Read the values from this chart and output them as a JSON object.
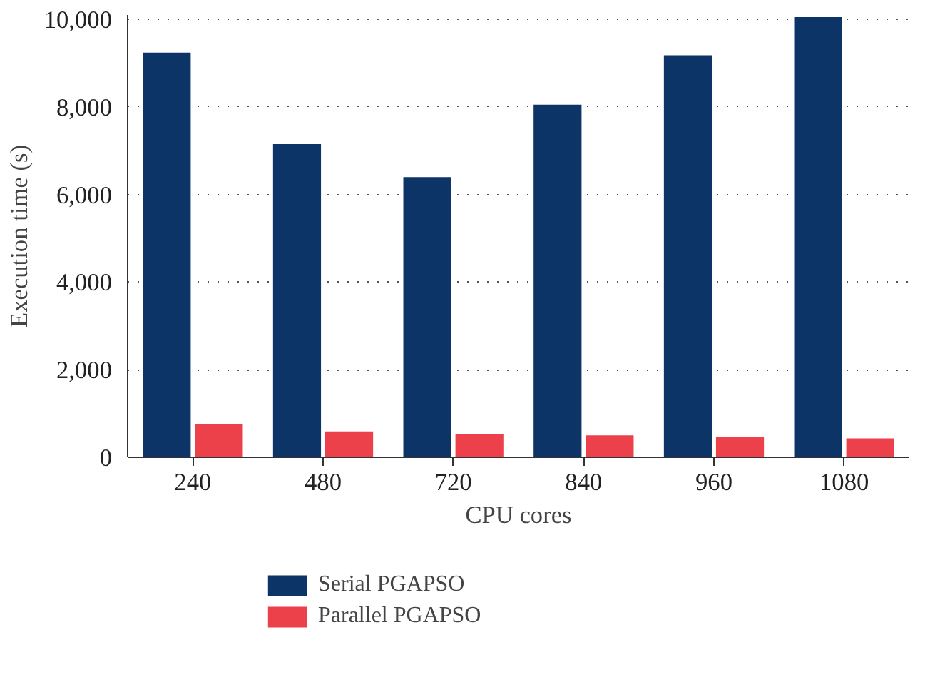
{
  "chart_data": {
    "type": "bar",
    "xlabel": "CPU cores",
    "ylabel": "Execution time (s)",
    "categories": [
      "240",
      "480",
      "720",
      "840",
      "960",
      "1080"
    ],
    "series": [
      {
        "name": "Serial PGAPSO",
        "color": "#0d3466",
        "values": [
          9240,
          7150,
          6400,
          8050,
          9180,
          10050
        ]
      },
      {
        "name": "Parallel PGAPSO",
        "color": "#ec404b",
        "values": [
          750,
          590,
          520,
          500,
          470,
          430
        ]
      }
    ],
    "ylim": [
      0,
      10100
    ],
    "yticks": [
      0,
      {
        "value": 2000,
        "label": "2,000"
      },
      {
        "value": 4000,
        "label": "4,000"
      },
      {
        "value": 6000,
        "label": "6,000"
      },
      {
        "value": 8000,
        "label": "8,000"
      },
      {
        "value": 10000,
        "label": "10,000"
      }
    ],
    "grid": "y",
    "legend": "bottom left"
  }
}
